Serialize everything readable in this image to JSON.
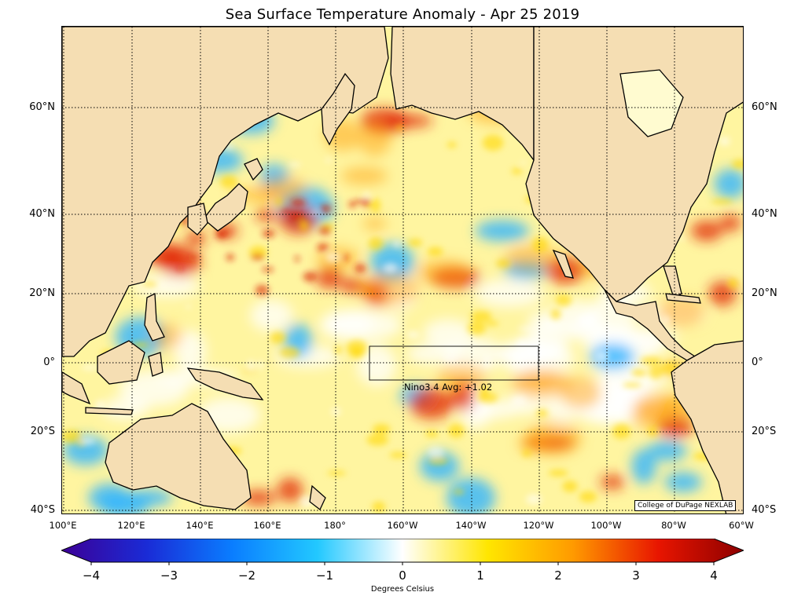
{
  "title": "Sea Surface Temperature Anomaly - Apr 25 2019",
  "lat_labels": [
    "60°N",
    "40°N",
    "20°N",
    "0°",
    "20°S",
    "40°S"
  ],
  "lon_labels": [
    "100°E",
    "120°E",
    "140°E",
    "160°E",
    "180°",
    "160°W",
    "140°W",
    "120°W",
    "100°W",
    "80°W",
    "60°W"
  ],
  "nino_box_label": "Nino3.4 Avg: +1.02",
  "credit": "College of DuPage NEXLAB",
  "colorbar": {
    "ticks": [
      "−4",
      "−3",
      "−2",
      "−1",
      "0",
      "1",
      "2",
      "3",
      "4"
    ],
    "label": "Degrees Celsius",
    "colors": [
      "#3c0096",
      "#1a2bd6",
      "#0a7dff",
      "#22c8ff",
      "#ffffff",
      "#ffe600",
      "#ff9a00",
      "#e81500",
      "#8c0000"
    ]
  },
  "colors": {
    "land": "#f5deb3",
    "neutral_ocean": "#ffffff",
    "warm_anomaly": "#ffd700",
    "hot_anomaly": "#e02000",
    "cool_anomaly": "#2fb4ff"
  }
}
